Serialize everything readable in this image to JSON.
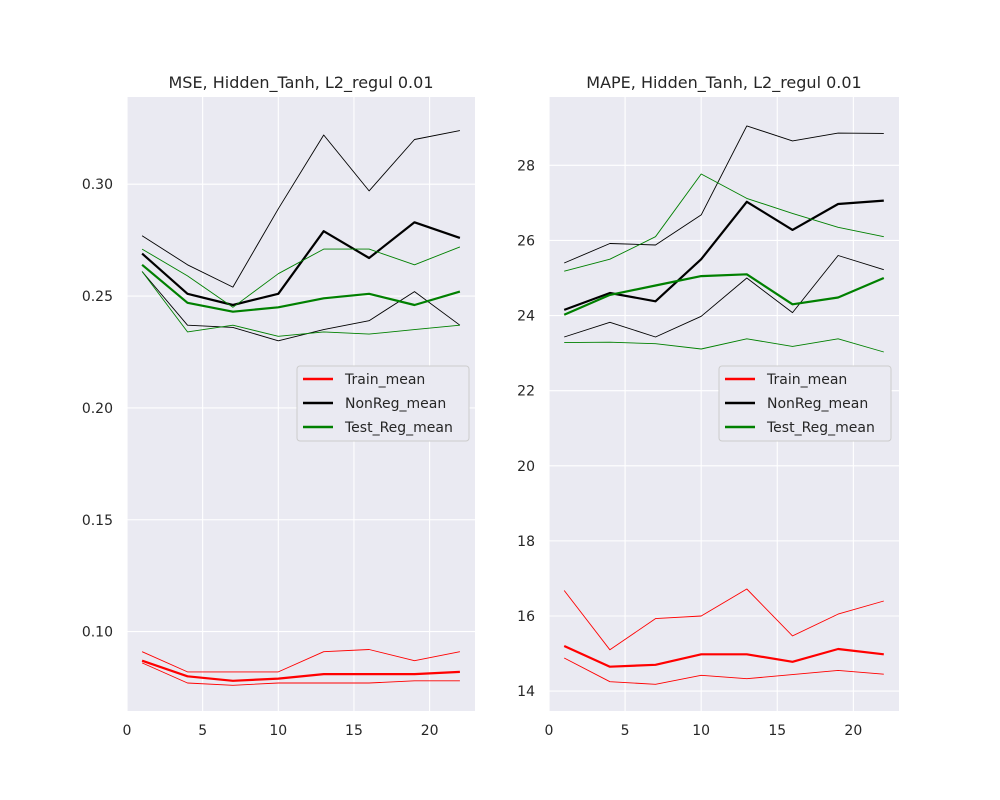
{
  "chart_data": [
    {
      "type": "line",
      "title": "MSE, Hidden_Tanh, L2_regul 0.01",
      "xlabel": "",
      "ylabel": "",
      "xlim": [
        0,
        23
      ],
      "ylim": [
        0.0645,
        0.339
      ],
      "xticks": [
        0,
        5,
        10,
        15,
        20
      ],
      "yticks": [
        0.1,
        0.15,
        0.2,
        0.25,
        0.3
      ],
      "ytick_labels": [
        "0.10",
        "0.15",
        "0.20",
        "0.25",
        "0.30"
      ],
      "grid": true,
      "legend_position": "center-right",
      "x": [
        1,
        4,
        7,
        10,
        13,
        16,
        19,
        22
      ],
      "series": [
        {
          "name": "Train_mean",
          "color": "#ff0000",
          "width": 2.2,
          "legend": true,
          "values": [
            0.087,
            0.08,
            0.078,
            0.079,
            0.081,
            0.081,
            0.081,
            0.082
          ]
        },
        {
          "name": "",
          "color": "#ff0000",
          "width": 0.9,
          "legend": false,
          "values": [
            0.091,
            0.082,
            0.082,
            0.082,
            0.091,
            0.092,
            0.087,
            0.091
          ]
        },
        {
          "name": "",
          "color": "#ff0000",
          "width": 0.9,
          "legend": false,
          "values": [
            0.086,
            0.077,
            0.076,
            0.077,
            0.077,
            0.077,
            0.078,
            0.078
          ]
        },
        {
          "name": "NonReg_mean",
          "color": "#000000",
          "width": 2.2,
          "legend": true,
          "values": [
            0.269,
            0.251,
            0.246,
            0.251,
            0.279,
            0.267,
            0.283,
            0.276
          ]
        },
        {
          "name": "",
          "color": "#000000",
          "width": 0.9,
          "legend": false,
          "values": [
            0.277,
            0.264,
            0.254,
            0.289,
            0.322,
            0.297,
            0.32,
            0.324
          ]
        },
        {
          "name": "",
          "color": "#000000",
          "width": 0.9,
          "legend": false,
          "values": [
            0.261,
            0.237,
            0.236,
            0.23,
            0.235,
            0.239,
            0.252,
            0.237
          ]
        },
        {
          "name": "Test_Reg_mean",
          "color": "#008000",
          "width": 2.2,
          "legend": true,
          "values": [
            0.264,
            0.247,
            0.243,
            0.245,
            0.249,
            0.251,
            0.246,
            0.252
          ]
        },
        {
          "name": "",
          "color": "#008000",
          "width": 0.9,
          "legend": false,
          "values": [
            0.271,
            0.259,
            0.245,
            0.26,
            0.271,
            0.271,
            0.264,
            0.272
          ]
        },
        {
          "name": "",
          "color": "#008000",
          "width": 0.9,
          "legend": false,
          "values": [
            0.261,
            0.234,
            0.237,
            0.232,
            0.234,
            0.233,
            0.235,
            0.237
          ]
        }
      ]
    },
    {
      "type": "line",
      "title": "MAPE, Hidden_Tanh, L2_regul 0.01",
      "xlabel": "",
      "ylabel": "",
      "xlim": [
        0,
        23
      ],
      "ylim": [
        13.47,
        29.82
      ],
      "xticks": [
        0,
        5,
        10,
        15,
        20
      ],
      "yticks": [
        14,
        16,
        18,
        20,
        22,
        24,
        26,
        28
      ],
      "ytick_labels": [
        "14",
        "16",
        "18",
        "20",
        "22",
        "24",
        "26",
        "28"
      ],
      "grid": true,
      "legend_position": "center-right",
      "x": [
        1,
        4,
        7,
        10,
        13,
        16,
        19,
        22
      ],
      "series": [
        {
          "name": "Train_mean",
          "color": "#ff0000",
          "width": 2.2,
          "legend": true,
          "values": [
            15.2,
            14.65,
            14.7,
            14.98,
            14.98,
            14.78,
            15.12,
            14.98
          ]
        },
        {
          "name": "",
          "color": "#ff0000",
          "width": 0.9,
          "legend": false,
          "values": [
            16.68,
            15.1,
            15.93,
            16.0,
            16.72,
            15.47,
            16.05,
            16.4
          ]
        },
        {
          "name": "",
          "color": "#ff0000",
          "width": 0.9,
          "legend": false,
          "values": [
            14.88,
            14.25,
            14.18,
            14.42,
            14.33,
            14.44,
            14.55,
            14.45
          ]
        },
        {
          "name": "NonReg_mean",
          "color": "#000000",
          "width": 2.2,
          "legend": true,
          "values": [
            24.15,
            24.6,
            24.38,
            25.5,
            27.03,
            26.28,
            26.97,
            27.06
          ]
        },
        {
          "name": "",
          "color": "#000000",
          "width": 0.9,
          "legend": false,
          "values": [
            25.4,
            25.92,
            25.88,
            26.68,
            29.05,
            28.65,
            28.86,
            28.85
          ]
        },
        {
          "name": "",
          "color": "#000000",
          "width": 0.9,
          "legend": false,
          "values": [
            23.43,
            23.82,
            23.43,
            23.98,
            25.0,
            24.08,
            25.6,
            25.22
          ]
        },
        {
          "name": "Test_Reg_mean",
          "color": "#008000",
          "width": 2.2,
          "legend": true,
          "values": [
            24.02,
            24.55,
            24.8,
            25.05,
            25.1,
            24.3,
            24.48,
            25.0
          ]
        },
        {
          "name": "",
          "color": "#008000",
          "width": 0.9,
          "legend": false,
          "values": [
            25.18,
            25.5,
            26.1,
            27.77,
            27.12,
            26.72,
            26.35,
            26.1
          ]
        },
        {
          "name": "",
          "color": "#008000",
          "width": 0.9,
          "legend": false,
          "values": [
            23.28,
            23.29,
            23.25,
            23.11,
            23.38,
            23.18,
            23.38,
            23.03
          ]
        }
      ]
    }
  ]
}
